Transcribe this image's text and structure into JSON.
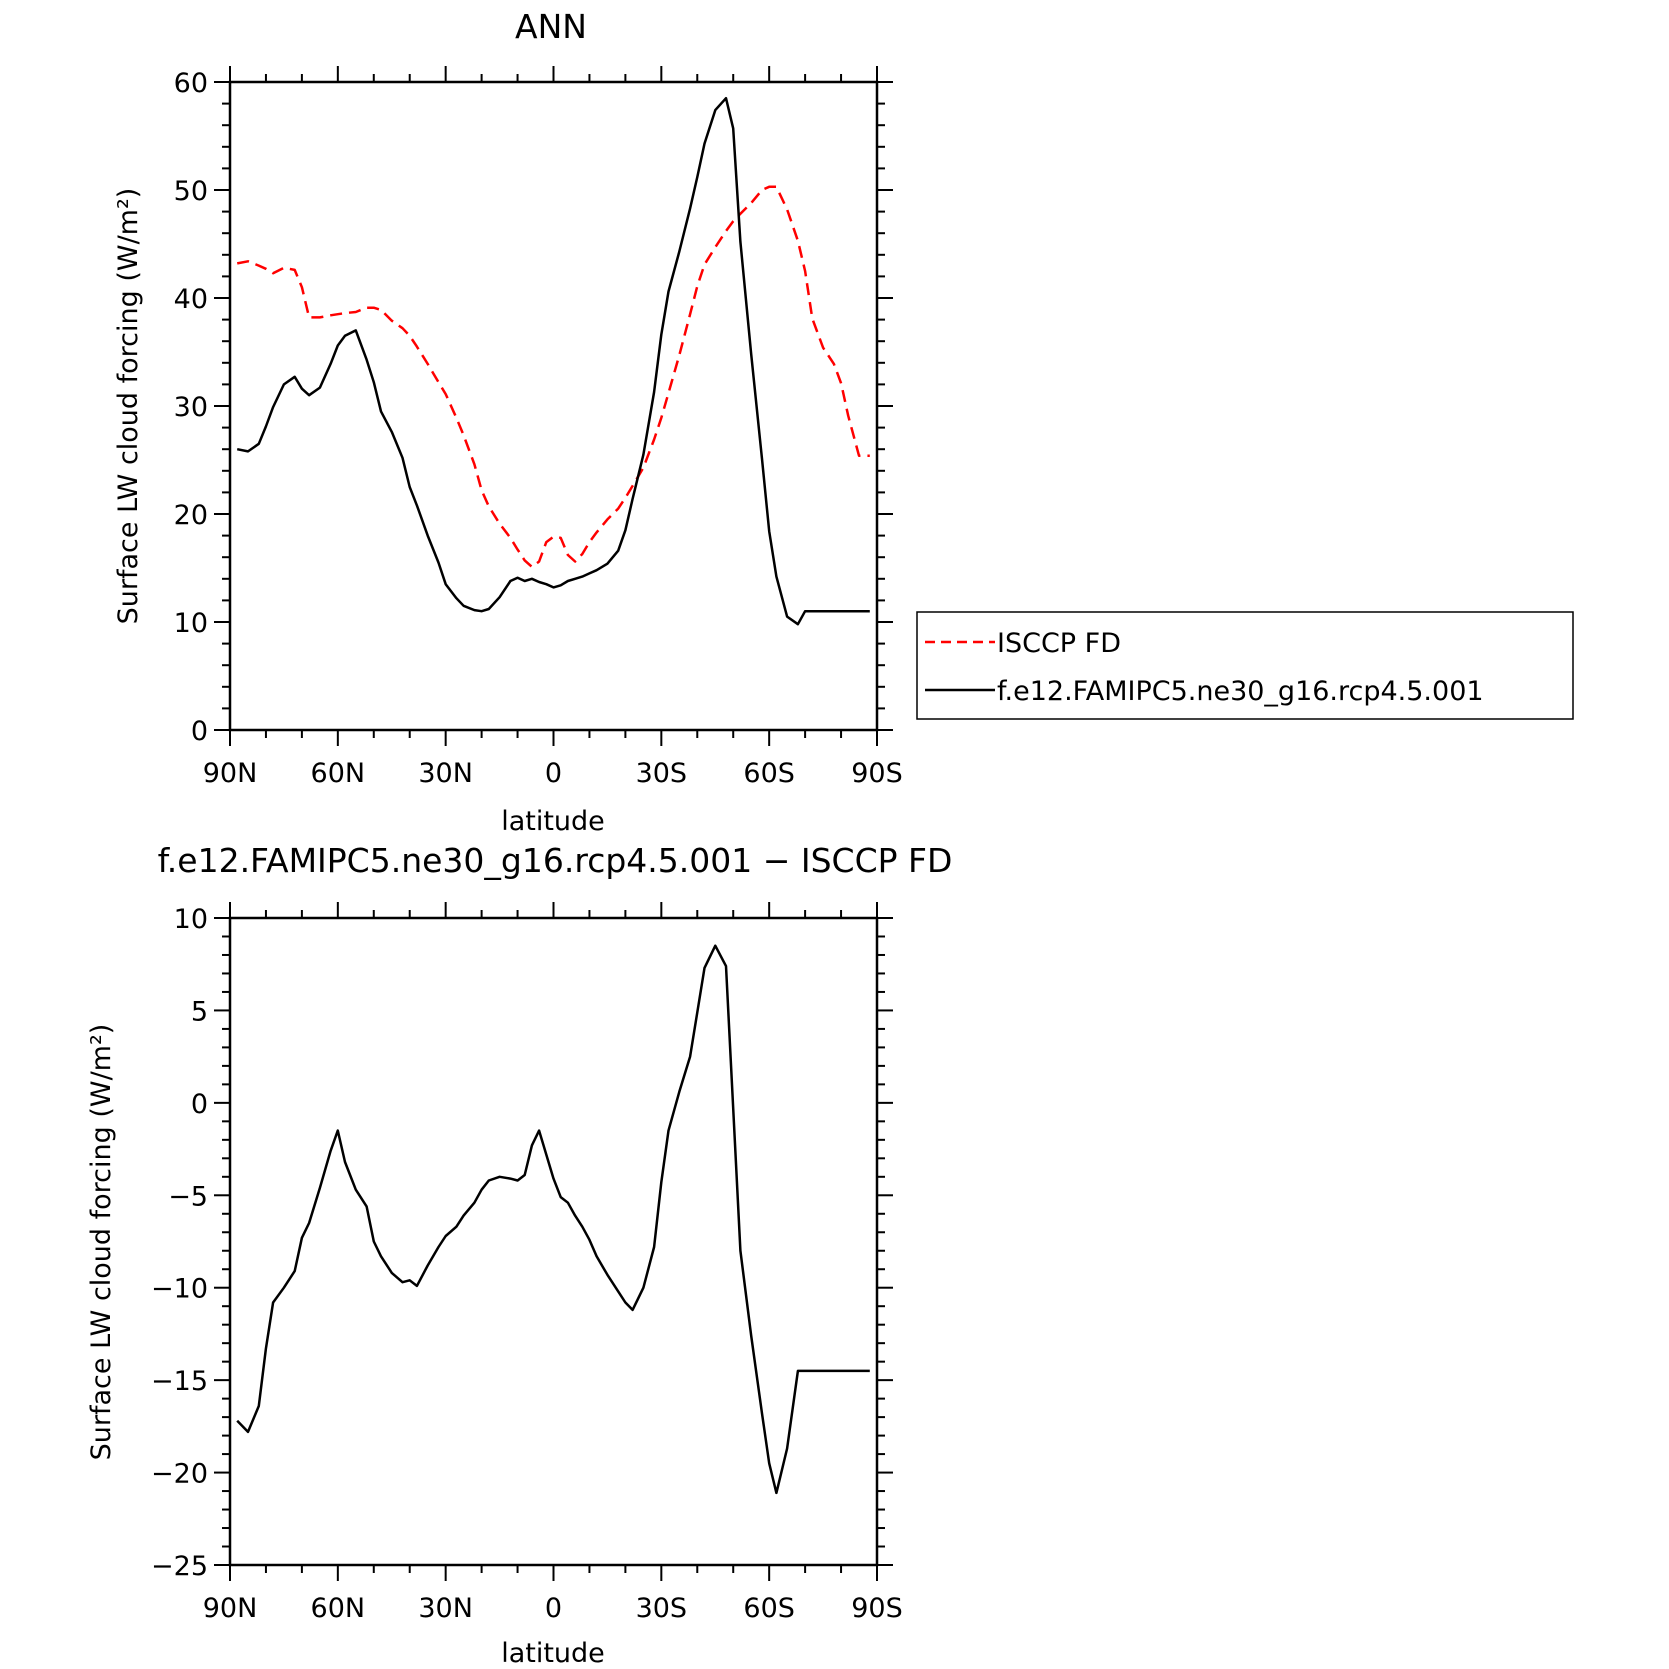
{
  "chart_data": [
    {
      "type": "line",
      "title": "ANN",
      "xlabel": "latitude",
      "ylabel": "Surface LW cloud forcing (W/m²)",
      "xlim": [
        90,
        -90
      ],
      "ylim": [
        0,
        60
      ],
      "x_ticks": [
        90,
        60,
        30,
        0,
        -30,
        -60,
        -90
      ],
      "x_tick_labels": [
        "90N",
        "60N",
        "30N",
        "0",
        "30S",
        "60S",
        "90S"
      ],
      "y_ticks": [
        0,
        10,
        20,
        30,
        40,
        50,
        60
      ],
      "y_tick_labels": [
        "0",
        "10",
        "20",
        "30",
        "40",
        "50",
        "60"
      ],
      "grid": false,
      "legend_position": "right, outside plot",
      "series": [
        {
          "name": "ISCCP FD",
          "color": "#ff0000",
          "dash": "dashed",
          "x": [
            88,
            85,
            82,
            80,
            78,
            75,
            72,
            70,
            68,
            65,
            62,
            60,
            58,
            55,
            52,
            50,
            48,
            45,
            42,
            40,
            38,
            35,
            32,
            30,
            27,
            25,
            22,
            20,
            18,
            15,
            12,
            10,
            8,
            6,
            4,
            2,
            0,
            -2,
            -4,
            -6,
            -8,
            -10,
            -12,
            -15,
            -18,
            -20,
            -22,
            -25,
            -28,
            -30,
            -32,
            -35,
            -38,
            -40,
            -42,
            -45,
            -48,
            -50,
            -52,
            -55,
            -58,
            -60,
            -62,
            -65,
            -68,
            -70,
            -72,
            -75,
            -78,
            -80,
            -82,
            -85,
            -88
          ],
          "y": [
            43.2,
            43.4,
            43,
            42.7,
            42.3,
            42.8,
            42.6,
            41,
            38.2,
            38.2,
            38.4,
            38.5,
            38.6,
            38.7,
            39.1,
            39.1,
            38.9,
            37.9,
            37.2,
            36.5,
            35.5,
            33.9,
            32.2,
            31.1,
            28.9,
            27.3,
            24.6,
            22.2,
            20.7,
            19.1,
            17.8,
            16.7,
            15.7,
            15.1,
            15.6,
            17.4,
            17.9,
            17.8,
            16.2,
            15.6,
            16.3,
            17.4,
            18.3,
            19.5,
            20.5,
            21.5,
            22.6,
            24.3,
            26.9,
            28.9,
            31.2,
            34.7,
            38.5,
            41.1,
            43.1,
            44.7,
            46.2,
            47.1,
            47.8,
            48.8,
            50,
            50.3,
            50.3,
            48.2,
            45.3,
            42.5,
            38.1,
            35.4,
            33.9,
            32.1,
            29.1,
            25.4,
            25.4
          ]
        },
        {
          "name": "f.e12.FAMIPC5.ne30_g16.rcp4.5.001",
          "color": "#000000",
          "dash": "solid",
          "x": [
            88,
            85,
            82,
            80,
            78,
            75,
            72,
            70,
            68,
            65,
            62,
            60,
            58,
            55,
            52,
            50,
            48,
            45,
            42,
            40,
            38,
            35,
            32,
            30,
            27,
            25,
            22,
            20,
            18,
            15,
            12,
            10,
            8,
            6,
            4,
            2,
            0,
            -2,
            -4,
            -6,
            -8,
            -10,
            -12,
            -15,
            -18,
            -20,
            -22,
            -25,
            -28,
            -30,
            -32,
            -35,
            -38,
            -40,
            -42,
            -45,
            -48,
            -50,
            -52,
            -55,
            -58,
            -60,
            -62,
            -65,
            -68,
            -70,
            -72,
            -75,
            -78,
            -80,
            -82,
            -85,
            -88
          ],
          "y": [
            26,
            25.8,
            26.5,
            28.1,
            29.9,
            32,
            32.7,
            31.6,
            31,
            31.7,
            33.9,
            35.6,
            36.5,
            37,
            34.3,
            32.2,
            29.5,
            27.6,
            25.2,
            22.5,
            20.8,
            18,
            15.5,
            13.5,
            12.2,
            11.5,
            11.1,
            11,
            11.2,
            12.3,
            13.8,
            14.1,
            13.8,
            14,
            13.7,
            13.5,
            13.2,
            13.4,
            13.8,
            14,
            14.2,
            14.5,
            14.8,
            15.4,
            16.6,
            18.5,
            21.4,
            25.5,
            31.3,
            36.6,
            40.6,
            44.3,
            48.3,
            51.2,
            54.3,
            57.4,
            58.5,
            55.7,
            45.2,
            34.8,
            25.1,
            18.4,
            14.2,
            10.5,
            9.8,
            11,
            11,
            11,
            11,
            11,
            11,
            11,
            11
          ]
        }
      ]
    },
    {
      "type": "line",
      "title": "f.e12.FAMIPC5.ne30_g16.rcp4.5.001 − ISCCP FD",
      "xlabel": "latitude",
      "ylabel": "Surface LW cloud forcing (W/m²)",
      "xlim": [
        90,
        -90
      ],
      "ylim": [
        -25,
        10
      ],
      "x_ticks": [
        90,
        60,
        30,
        0,
        -30,
        -60,
        -90
      ],
      "x_tick_labels": [
        "90N",
        "60N",
        "30N",
        "0",
        "30S",
        "60S",
        "90S"
      ],
      "y_ticks": [
        -25,
        -20,
        -15,
        -10,
        -5,
        0,
        5,
        10
      ],
      "y_tick_labels": [
        "−25",
        "−20",
        "−15",
        "−10",
        "−5",
        "0",
        "5",
        "10"
      ],
      "grid": false,
      "series": [
        {
          "color": "#000000",
          "dash": "solid",
          "x": [
            88,
            85,
            82,
            80,
            78,
            75,
            72,
            70,
            68,
            65,
            62,
            60,
            58,
            55,
            52,
            50,
            48,
            45,
            42,
            40,
            38,
            35,
            32,
            30,
            27,
            25,
            22,
            20,
            18,
            15,
            12,
            10,
            8,
            6,
            4,
            2,
            0,
            -2,
            -4,
            -6,
            -8,
            -10,
            -12,
            -15,
            -18,
            -20,
            -22,
            -25,
            -28,
            -30,
            -32,
            -35,
            -38,
            -40,
            -42,
            -45,
            -48,
            -50,
            -52,
            -55,
            -58,
            -60,
            -62,
            -65,
            -68,
            -70,
            -72,
            -75,
            -78,
            -80,
            -82,
            -85,
            -88
          ],
          "y": [
            -17.2,
            -17.8,
            -16.4,
            -13.3,
            -10.8,
            -10,
            -9.1,
            -7.3,
            -6.5,
            -4.6,
            -2.6,
            -1.5,
            -3.2,
            -4.7,
            -5.6,
            -7.5,
            -8.3,
            -9.2,
            -9.7,
            -9.6,
            -9.9,
            -8.8,
            -7.8,
            -7.2,
            -6.7,
            -6.1,
            -5.4,
            -4.7,
            -4.2,
            -4,
            -4.1,
            -4.2,
            -3.9,
            -2.3,
            -1.5,
            -2.8,
            -4.1,
            -5.1,
            -5.4,
            -6.1,
            -6.7,
            -7.4,
            -8.3,
            -9.3,
            -10.2,
            -10.8,
            -11.2,
            -10,
            -7.8,
            -4.3,
            -1.5,
            0.6,
            2.5,
            4.9,
            7.3,
            8.5,
            7.4,
            -0.3,
            -8,
            -12.6,
            -16.8,
            -19.5,
            -21.1,
            -18.7,
            -14.5,
            -14.5,
            -14.5,
            -14.5,
            -14.5,
            -14.5,
            -14.5,
            -14.5,
            -14.5
          ]
        }
      ]
    }
  ]
}
